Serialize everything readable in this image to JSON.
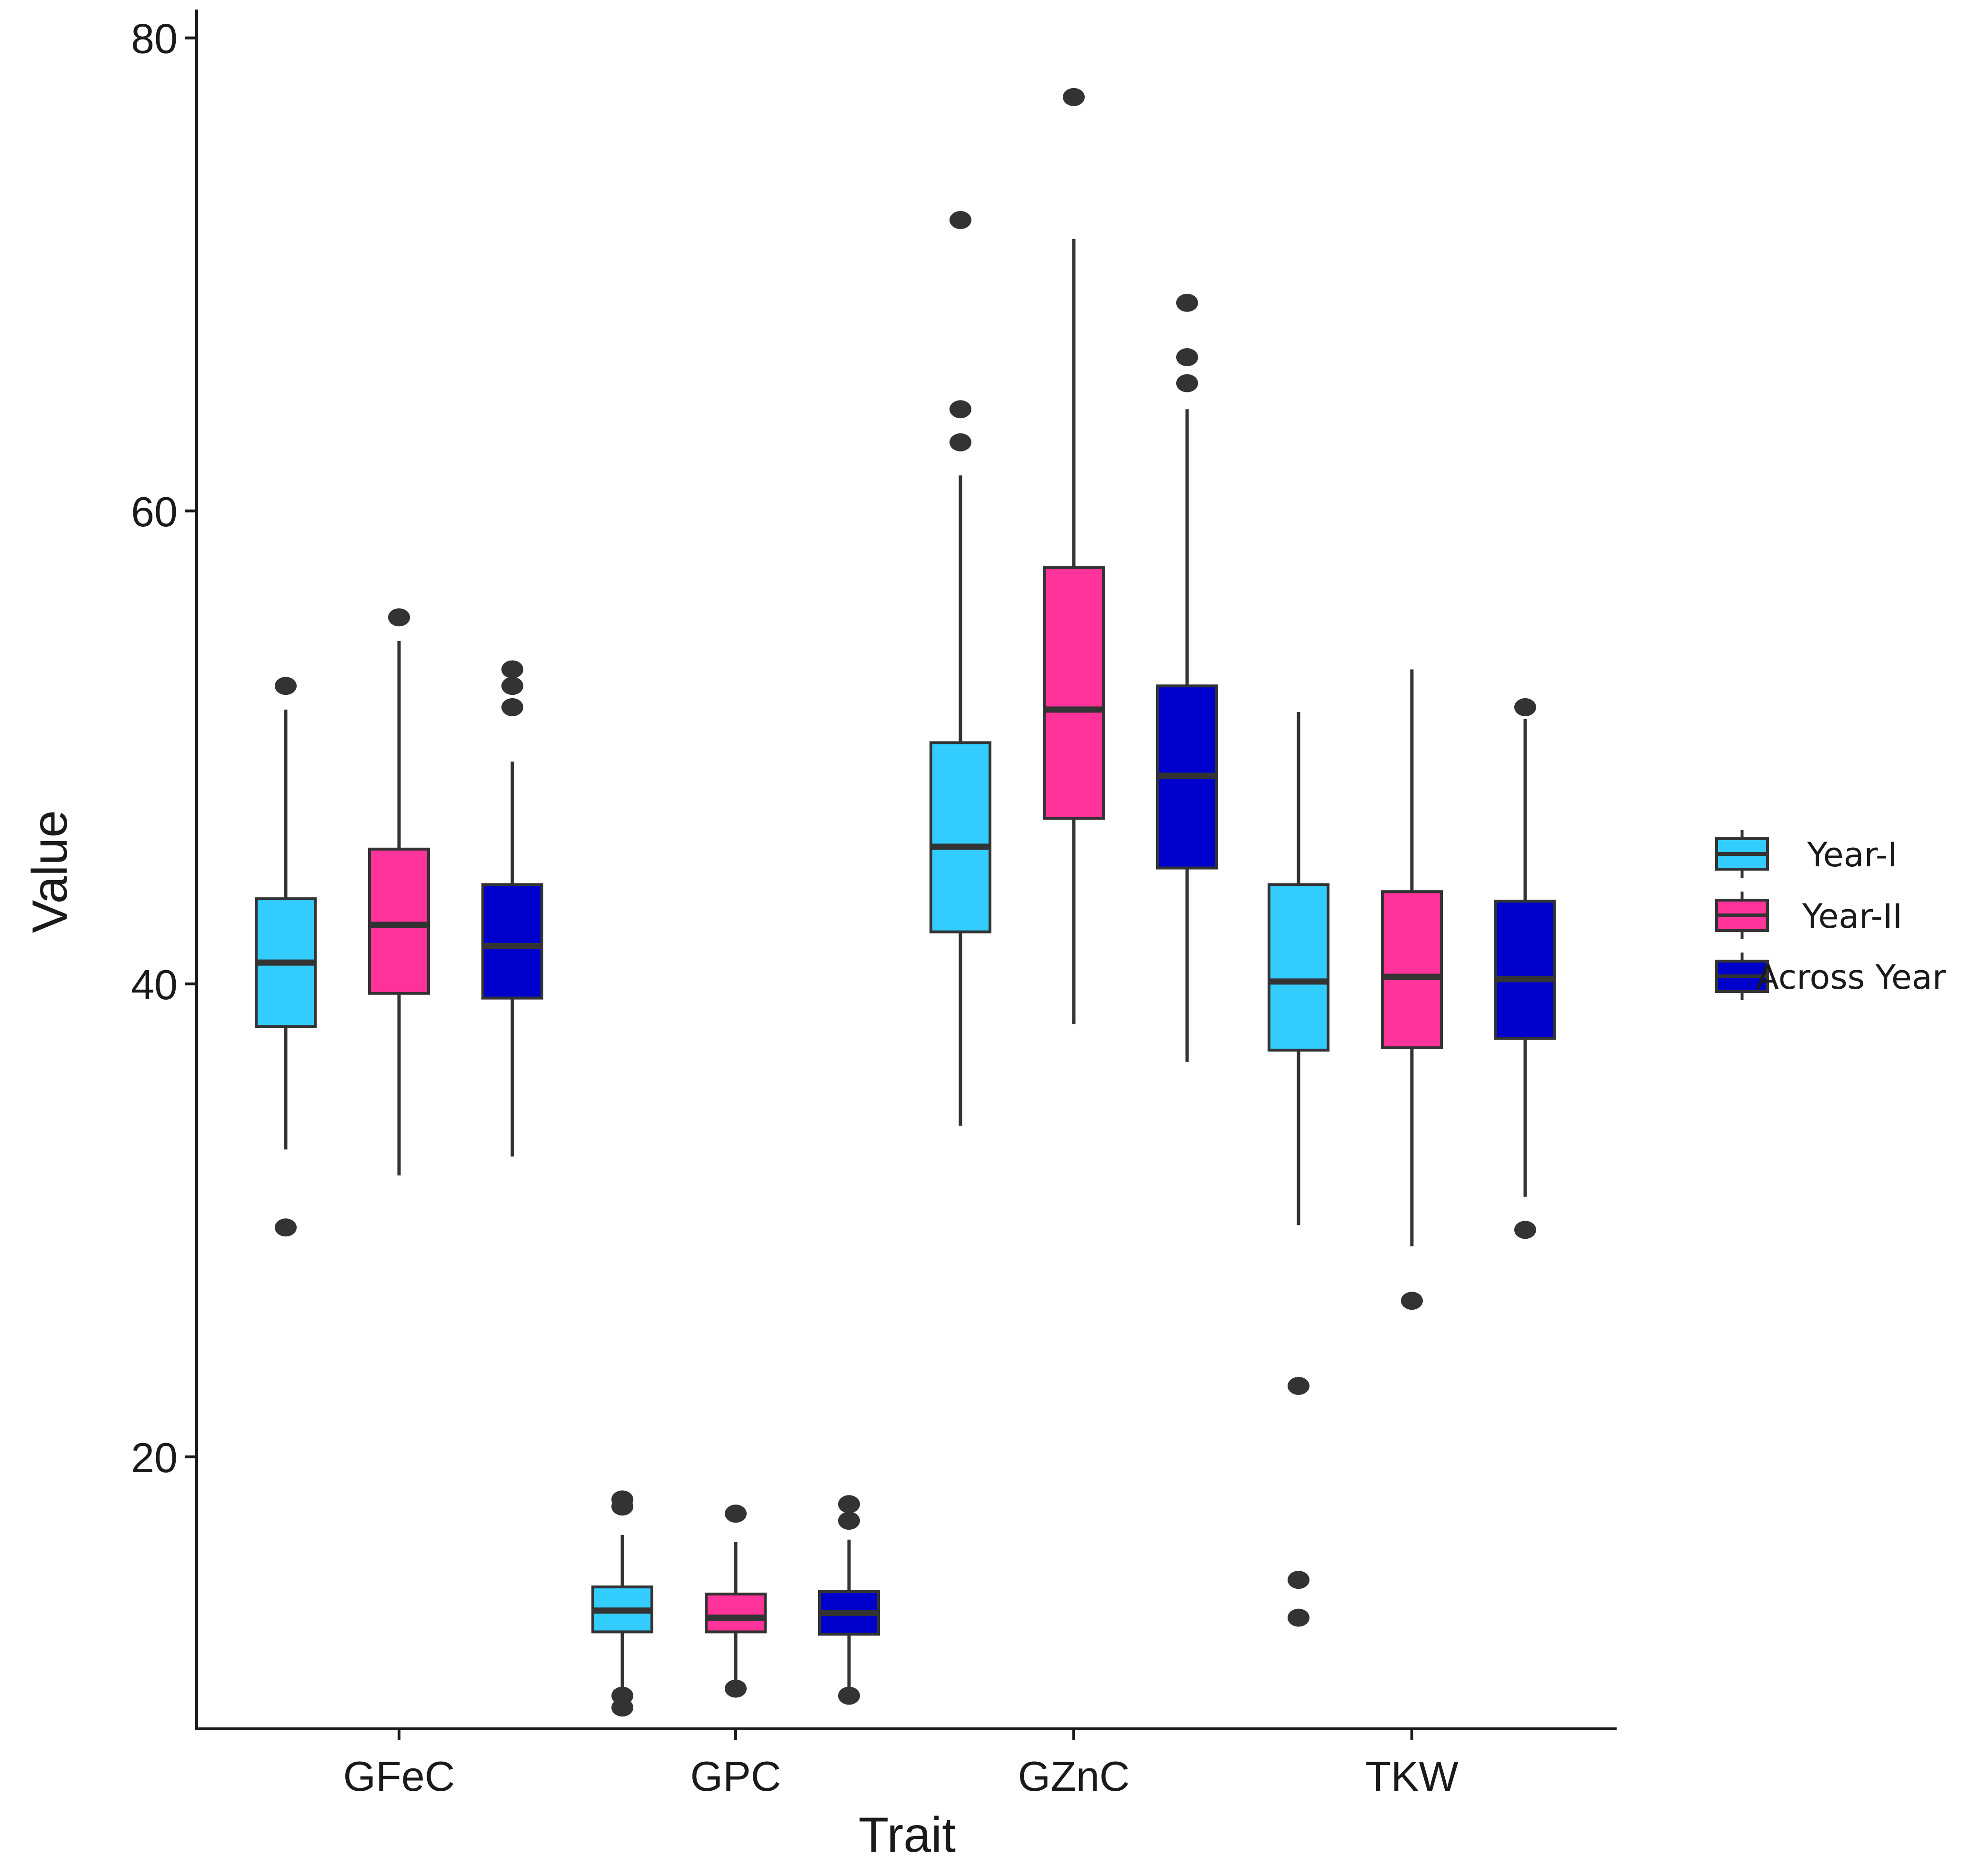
{
  "chart_data": {
    "type": "boxplot",
    "title": "",
    "xlabel": "Trait",
    "ylabel": "Value",
    "ylim": [
      8.5,
      81
    ],
    "yticks": [
      20,
      40,
      60,
      80
    ],
    "categories": [
      "GFeC",
      "GPC",
      "GZnC",
      "TKW"
    ],
    "legend": {
      "title": "",
      "position": "right",
      "entries": [
        "Year-I",
        "Year-II",
        "Across Year"
      ]
    },
    "series": [
      {
        "name": "Year-I",
        "color": "#33ccff",
        "boxes": [
          {
            "category": "GFeC",
            "q1": 38.2,
            "median": 40.9,
            "q3": 43.6,
            "whisker_low": 33.0,
            "whisker_high": 51.6,
            "outliers": [
              29.7,
              52.6
            ]
          },
          {
            "category": "GPC",
            "q1": 12.6,
            "median": 13.5,
            "q3": 14.5,
            "whisker_low": 10.2,
            "whisker_high": 16.7,
            "outliers": [
              9.4,
              9.9,
              17.9,
              18.2
            ]
          },
          {
            "category": "GZnC",
            "q1": 42.2,
            "median": 45.8,
            "q3": 50.2,
            "whisker_low": 34.0,
            "whisker_high": 61.5,
            "outliers": [
              62.9,
              64.3,
              72.3
            ]
          },
          {
            "category": "TKW",
            "q1": 37.2,
            "median": 40.1,
            "q3": 44.2,
            "whisker_low": 29.8,
            "whisker_high": 51.5,
            "outliers": [
              13.2,
              14.8,
              23.0
            ]
          }
        ]
      },
      {
        "name": "Year-II",
        "color": "#ff3399",
        "boxes": [
          {
            "category": "GFeC",
            "q1": 39.6,
            "median": 42.5,
            "q3": 45.7,
            "whisker_low": 31.9,
            "whisker_high": 54.5,
            "outliers": [
              55.5
            ]
          },
          {
            "category": "GPC",
            "q1": 12.6,
            "median": 13.2,
            "q3": 14.2,
            "whisker_low": 10.3,
            "whisker_high": 16.4,
            "outliers": [
              10.2,
              17.6
            ]
          },
          {
            "category": "GZnC",
            "q1": 47.0,
            "median": 51.6,
            "q3": 57.6,
            "whisker_low": 38.3,
            "whisker_high": 71.5,
            "outliers": [
              77.5
            ]
          },
          {
            "category": "TKW",
            "q1": 37.3,
            "median": 40.3,
            "q3": 43.9,
            "whisker_low": 28.9,
            "whisker_high": 53.3,
            "outliers": [
              26.6
            ]
          }
        ]
      },
      {
        "name": "Across Year",
        "color": "#0000cc",
        "boxes": [
          {
            "category": "GFeC",
            "q1": 39.4,
            "median": 41.6,
            "q3": 44.2,
            "whisker_low": 32.7,
            "whisker_high": 49.4,
            "outliers": [
              51.7,
              52.6,
              53.3
            ]
          },
          {
            "category": "GPC",
            "q1": 12.5,
            "median": 13.4,
            "q3": 14.3,
            "whisker_low": 10.2,
            "whisker_high": 16.5,
            "outliers": [
              9.9,
              17.3,
              18.0
            ]
          },
          {
            "category": "GZnC",
            "q1": 44.9,
            "median": 48.8,
            "q3": 52.6,
            "whisker_low": 36.7,
            "whisker_high": 64.3,
            "outliers": [
              65.4,
              66.5,
              68.8
            ]
          },
          {
            "category": "TKW",
            "q1": 37.7,
            "median": 40.2,
            "q3": 43.5,
            "whisker_low": 31.0,
            "whisker_high": 51.2,
            "outliers": [
              29.6,
              51.7
            ]
          }
        ]
      }
    ]
  }
}
